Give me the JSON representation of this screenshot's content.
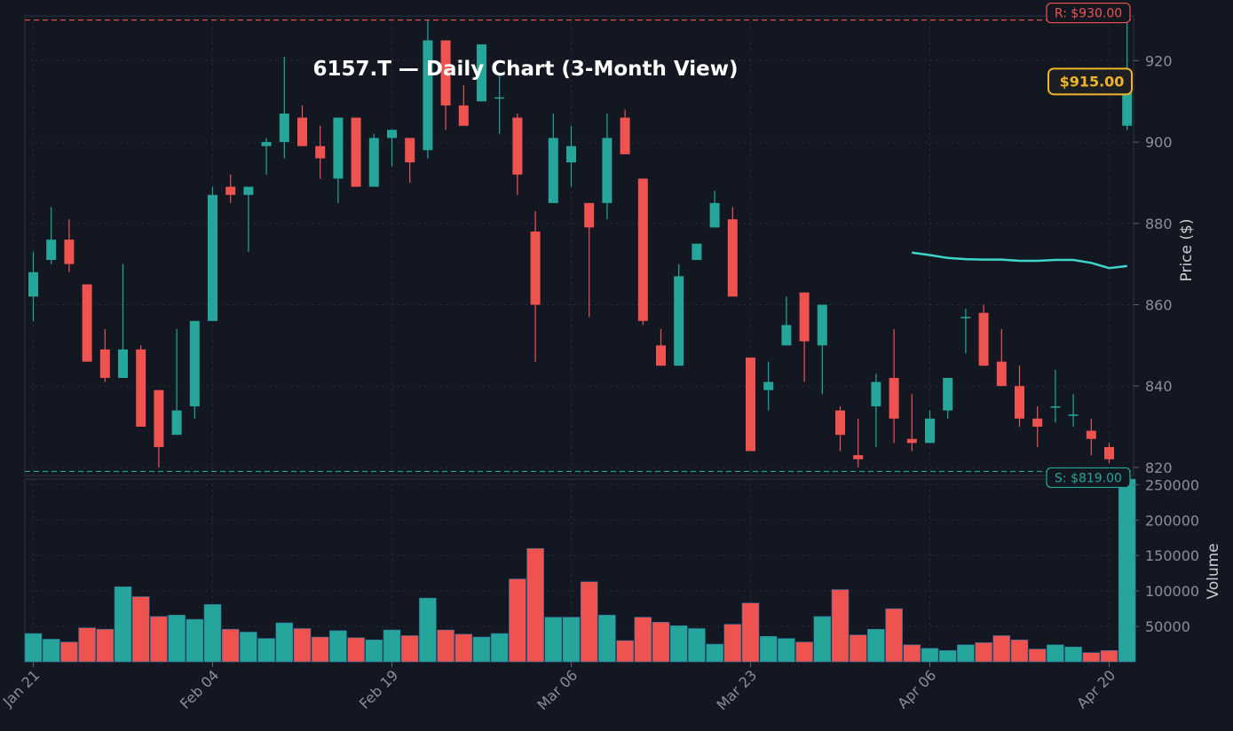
{
  "chart_data": {
    "type": "candlestick",
    "title": "6157.T — Daily Chart (3-Month View)",
    "price_axis_label": "Price ($)",
    "volume_axis_label": "Volume",
    "x_tick_labels": [
      "Jan 21",
      "Feb 04",
      "Feb 19",
      "Mar 06",
      "Mar 23",
      "Apr 06",
      "Apr 20"
    ],
    "x_tick_index": [
      0,
      10,
      20,
      30,
      40,
      50,
      60
    ],
    "price_ticks": [
      820,
      840,
      860,
      880,
      900,
      920
    ],
    "price_ylim": [
      818,
      931
    ],
    "volume_ticks": [
      50000,
      100000,
      150000,
      200000,
      250000
    ],
    "volume_tick_labels": [
      "50000",
      "100000",
      "150000",
      "200000",
      "250000"
    ],
    "volume_ylim": [
      0,
      258000
    ],
    "resistance": {
      "label": "R: $930.00",
      "value": 930,
      "color": "#ef5350"
    },
    "support": {
      "label": "S: $819.00",
      "value": 819,
      "color": "#26a69a"
    },
    "last_price": {
      "label": "$915.00",
      "value": 915,
      "color": "#f0b429"
    },
    "up_color": "#26a69a",
    "down_color": "#ef5350",
    "ma_color": "#3dd6c8",
    "grid": true,
    "ohlc": [
      [
        862,
        873,
        856,
        868
      ],
      [
        871,
        884,
        870,
        876
      ],
      [
        876,
        881,
        868,
        870
      ],
      [
        865,
        865,
        846,
        846
      ],
      [
        849,
        854,
        841,
        842
      ],
      [
        842,
        870,
        842,
        849
      ],
      [
        849,
        850,
        830,
        830
      ],
      [
        839,
        839,
        820,
        825
      ],
      [
        828,
        854,
        828,
        834
      ],
      [
        835,
        856,
        832,
        856
      ],
      [
        856,
        889,
        856,
        887
      ],
      [
        889,
        892,
        885,
        887
      ],
      [
        887,
        889,
        873,
        889
      ],
      [
        899,
        901,
        892,
        900
      ],
      [
        900,
        921,
        896,
        907
      ],
      [
        906,
        909,
        899,
        899
      ],
      [
        899,
        904,
        891,
        896
      ],
      [
        891,
        906,
        885,
        906
      ],
      [
        906,
        906,
        889,
        889
      ],
      [
        889,
        902,
        889,
        901
      ],
      [
        901,
        903,
        894,
        903
      ],
      [
        901,
        901,
        890,
        895
      ],
      [
        898,
        930,
        896,
        925
      ],
      [
        925,
        925,
        903,
        909
      ],
      [
        909,
        914,
        904,
        904
      ],
      [
        910,
        924,
        910,
        924
      ],
      [
        911,
        917,
        902,
        911
      ],
      [
        906,
        907,
        887,
        892
      ],
      [
        878,
        883,
        846,
        860
      ],
      [
        885,
        907,
        885,
        901
      ],
      [
        895,
        904,
        889,
        899
      ],
      [
        885,
        885,
        857,
        879
      ],
      [
        885,
        907,
        881,
        901
      ],
      [
        906,
        908,
        897,
        897
      ],
      [
        891,
        891,
        855,
        856
      ],
      [
        850,
        854,
        845,
        845
      ],
      [
        845,
        870,
        845,
        867
      ],
      [
        871,
        875,
        871,
        875
      ],
      [
        879,
        888,
        879,
        885
      ],
      [
        881,
        884,
        862,
        862
      ],
      [
        847,
        847,
        824,
        824
      ],
      [
        839,
        846,
        834,
        841
      ],
      [
        850,
        862,
        850,
        855
      ],
      [
        863,
        863,
        841,
        851
      ],
      [
        850,
        860,
        838,
        860
      ],
      [
        834,
        835,
        824,
        828
      ],
      [
        823,
        832,
        820,
        822
      ],
      [
        835,
        843,
        825,
        841
      ],
      [
        842,
        854,
        826,
        832
      ],
      [
        827,
        838,
        824,
        826
      ],
      [
        826,
        834,
        826,
        832
      ],
      [
        834,
        842,
        832,
        842
      ],
      [
        857,
        859,
        848,
        857
      ],
      [
        858,
        860,
        845,
        845
      ],
      [
        846,
        854,
        840,
        840
      ],
      [
        840,
        845,
        830,
        832
      ],
      [
        832,
        835,
        825,
        830
      ],
      [
        835,
        844,
        831,
        835
      ],
      [
        833,
        838,
        830,
        833
      ],
      [
        829,
        832,
        823,
        827
      ],
      [
        825,
        826,
        821,
        822
      ],
      [
        904,
        930,
        903,
        915
      ]
    ],
    "volume": [
      40000,
      32000,
      28000,
      48000,
      46000,
      106000,
      92000,
      64000,
      66000,
      60000,
      81000,
      46000,
      42000,
      33000,
      55000,
      47000,
      35000,
      44000,
      34000,
      31000,
      45000,
      37000,
      90000,
      45000,
      39000,
      35000,
      40000,
      117000,
      160000,
      63000,
      63000,
      113000,
      66000,
      30000,
      63000,
      56000,
      51000,
      47000,
      25000,
      53000,
      83000,
      36000,
      33000,
      28000,
      64000,
      102000,
      38000,
      46000,
      75000,
      24000,
      19000,
      16000,
      24000,
      27000,
      37000,
      31000,
      18000,
      24000,
      21000,
      13000,
      16000,
      258000
    ],
    "moving_average": [
      [
        49,
        872.8
      ],
      [
        50,
        872.2
      ],
      [
        51,
        871.5
      ],
      [
        52,
        871.2
      ],
      [
        53,
        871.1
      ],
      [
        54,
        871.1
      ],
      [
        55,
        870.8
      ],
      [
        56,
        870.8
      ],
      [
        57,
        871.0
      ],
      [
        58,
        871.0
      ],
      [
        59,
        870.3
      ],
      [
        60,
        869.0
      ],
      [
        61,
        869.5
      ]
    ]
  }
}
